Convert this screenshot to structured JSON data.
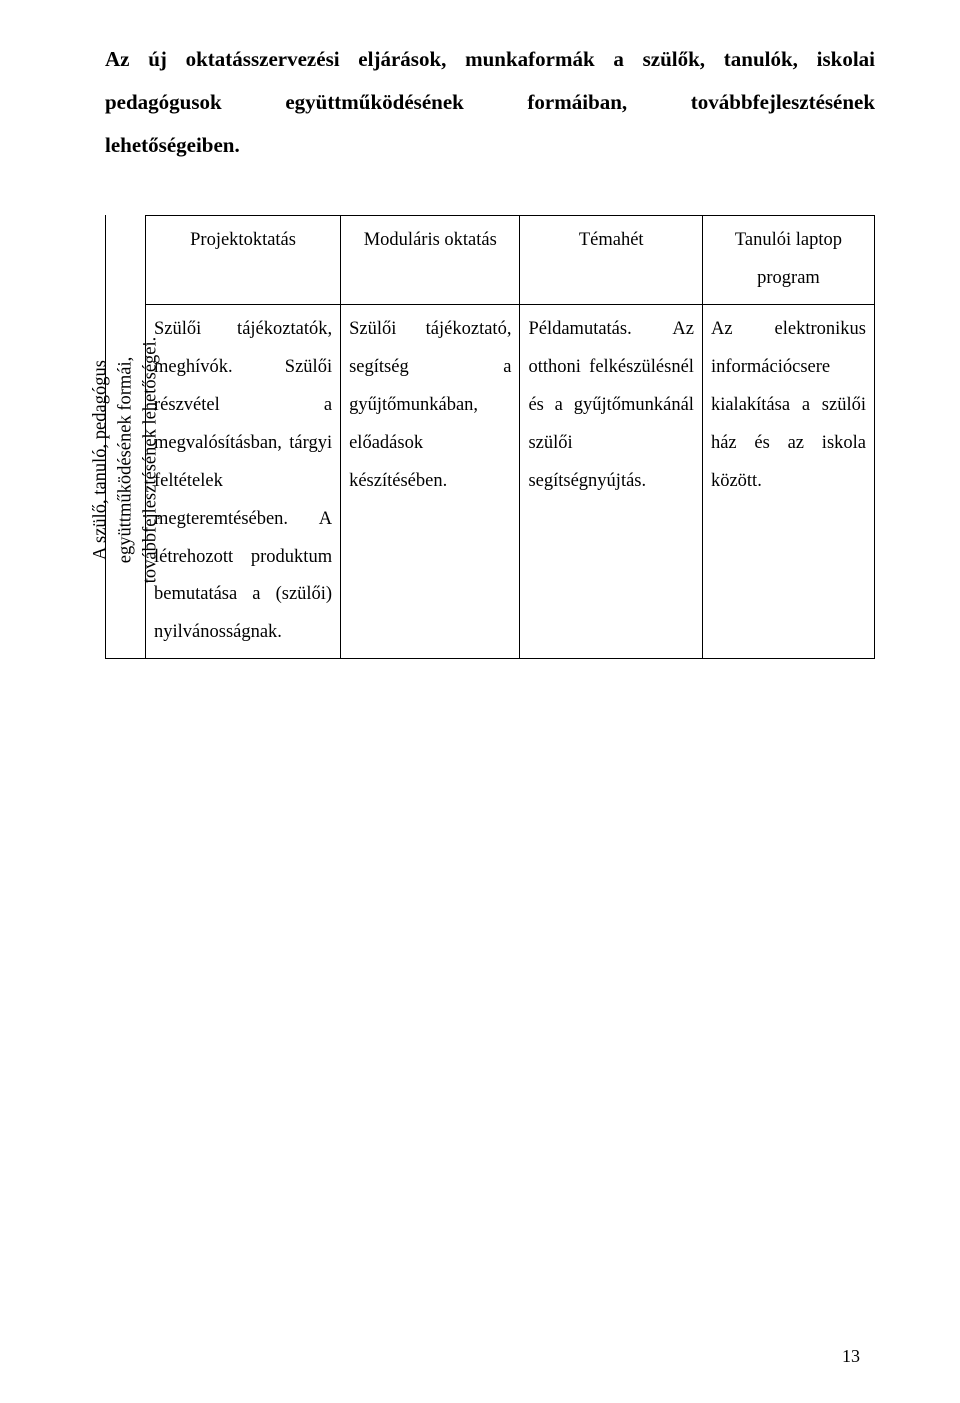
{
  "heading_parts": {
    "a": "Az új oktatásszervezési eljárások, munkaformák a szülők, tanulók, iskolai pedagógusok",
    "b": "együttműködésének",
    "c": "formáiban,",
    "d": "továbbfejlesztésének lehetőségeiben."
  },
  "table": {
    "headers": [
      "Projektoktatás",
      "Moduláris oktatás",
      "Témahét",
      "Tanulói laptop program"
    ],
    "row_header": "A szülő, tanuló, pedagógus\negyüttműködésének formái,\ntovábbfejlesztésének lehetőségei.",
    "cells": [
      "Szülői tájékoztatók, meghívók. Szülői részvétel a megvalósításban, tárgyi feltételek megteremtésében. A létrehozott produktum bemutatása a (szülői) nyilvánosságnak.",
      "Szülői tájékoztató, segítség a gyűjtőmunkában, előadások készítésében.",
      "Példamutatás. Az otthoni felkészülésnél és a gyűjtőmunkánál szülői segítségnyújtás.",
      "Az elektronikus információcsere kialakítása a szülői ház és az iskola között."
    ]
  },
  "page_number": "13"
}
